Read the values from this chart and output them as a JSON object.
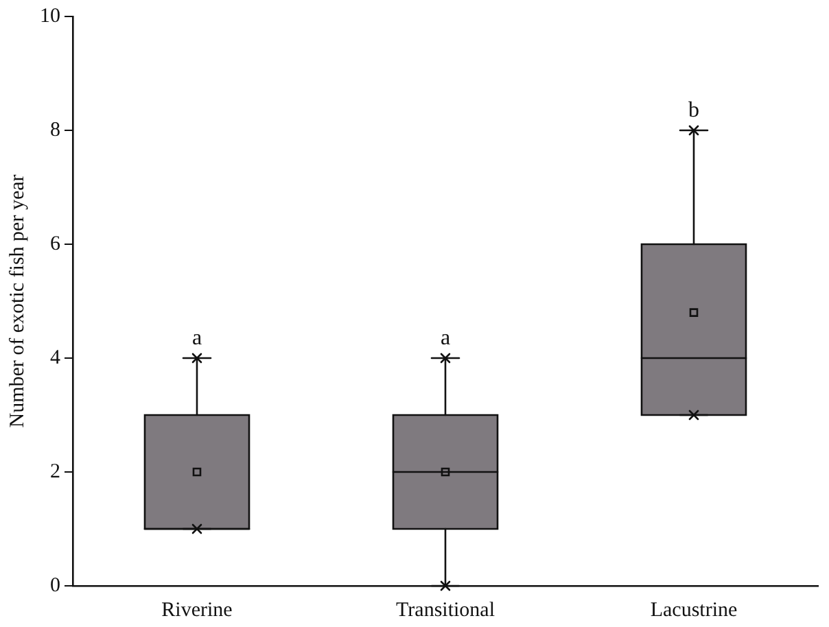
{
  "chart_data": {
    "type": "box",
    "ylabel": "Number of exotic fish per year",
    "categories": [
      "Riverine",
      "Transitional",
      "Lacustrine"
    ],
    "color": "#7f7a7f",
    "boxes": [
      {
        "low": 1,
        "q1": 1,
        "median": 1,
        "q3": 3,
        "high": 4,
        "mean": 2
      },
      {
        "low": 0,
        "q1": 1,
        "median": 2,
        "q3": 3,
        "high": 4,
        "mean": 2
      },
      {
        "low": 3,
        "q1": 3,
        "median": 4,
        "q3": 6,
        "high": 8,
        "mean": 4.8
      }
    ],
    "series": [
      {
        "type": "scatter",
        "marker": "cross",
        "color": "#111111",
        "x": [
          "Riverine",
          "Transitional",
          "Lacustrine",
          "Riverine",
          "Transitional",
          "Lacustrine"
        ],
        "values": [
          1,
          0,
          3,
          4,
          4,
          8
        ]
      }
    ],
    "ylim": [
      0,
      10
    ],
    "yticks": [
      0,
      2,
      4,
      6,
      8,
      10
    ],
    "annotations": [
      "a",
      "a",
      "b"
    ]
  }
}
